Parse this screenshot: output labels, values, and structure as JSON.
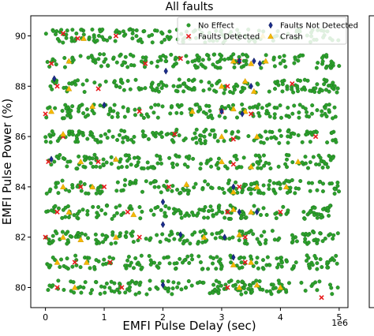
{
  "chart_data": {
    "type": "scatter",
    "title": "All faults",
    "xlabel": "EMFI Pulse Delay (sec)",
    "ylabel": "EMFI Pulse Power (%)",
    "x_offset_label": "1e6",
    "xlim": [
      -0.25,
      5.15
    ],
    "ylim": [
      79.2,
      90.8
    ],
    "x_ticks": [
      0,
      1,
      2,
      3,
      4,
      5
    ],
    "x_tick_labels": [
      "0",
      "1",
      "2",
      "3",
      "4",
      "5"
    ],
    "y_ticks": [
      80,
      82,
      84,
      86,
      88,
      90
    ],
    "y_tick_labels": [
      "80",
      "82",
      "84",
      "86",
      "88",
      "90"
    ],
    "grid": false,
    "legend_position": "top-right",
    "power_levels": [
      80,
      81,
      82,
      83,
      84,
      85,
      86,
      87,
      88,
      89,
      90
    ],
    "delay_range": [
      0,
      5
    ],
    "series": [
      {
        "name": "No Effect",
        "color": "#2ca02c",
        "marker": "circle",
        "points_per_level": 150
      },
      {
        "name": "Faults Detected",
        "color": "#e8191b",
        "marker": "x",
        "points": [
          [
            0.3,
            90.1
          ],
          [
            0.55,
            89.9
          ],
          [
            1.2,
            90.0
          ],
          [
            2.3,
            89.1
          ],
          [
            0.1,
            88.9
          ],
          [
            1.7,
            88.9
          ],
          [
            3.3,
            89.0
          ],
          [
            0.2,
            88.0
          ],
          [
            0.9,
            87.9
          ],
          [
            3.1,
            88.0
          ],
          [
            4.2,
            88.1
          ],
          [
            0.0,
            86.9
          ],
          [
            1.6,
            87.0
          ],
          [
            3.0,
            87.0
          ],
          [
            3.5,
            86.9
          ],
          [
            0.3,
            86.0
          ],
          [
            2.2,
            86.1
          ],
          [
            3.2,
            85.9
          ],
          [
            4.6,
            86.0
          ],
          [
            0.05,
            85.0
          ],
          [
            0.9,
            85.0
          ],
          [
            3.2,
            84.9
          ],
          [
            0.6,
            84.0
          ],
          [
            1.0,
            84.0
          ],
          [
            2.1,
            84.0
          ],
          [
            3.3,
            84.0
          ],
          [
            0.2,
            83.0
          ],
          [
            1.4,
            83.0
          ],
          [
            3.1,
            83.0
          ],
          [
            4.0,
            83.0
          ],
          [
            0.0,
            82.0
          ],
          [
            1.6,
            82.0
          ],
          [
            3.4,
            82.0
          ],
          [
            0.5,
            81.0
          ],
          [
            1.1,
            81.0
          ],
          [
            3.4,
            81.0
          ],
          [
            0.2,
            80.0
          ],
          [
            1.3,
            80.0
          ],
          [
            3.1,
            80.0
          ],
          [
            4.7,
            79.6
          ]
        ]
      },
      {
        "name": "Faults Not Detected",
        "color": "#1a2d8c",
        "marker": "diamond",
        "points": [
          [
            3.3,
            89.0
          ],
          [
            3.55,
            89.0
          ],
          [
            3.65,
            88.9
          ],
          [
            2.05,
            88.6
          ],
          [
            0.15,
            88.3
          ],
          [
            3.5,
            88.0
          ],
          [
            1.0,
            87.25
          ],
          [
            3.0,
            87.0
          ],
          [
            3.35,
            86.9
          ],
          [
            0.1,
            85.1
          ],
          [
            3.2,
            84.0
          ],
          [
            2.0,
            83.4
          ],
          [
            3.3,
            83.0
          ],
          [
            3.6,
            83.0
          ],
          [
            2.0,
            82.5
          ],
          [
            2.3,
            82.1
          ],
          [
            3.05,
            82.0
          ],
          [
            3.2,
            81.2
          ],
          [
            2.0,
            80.1
          ]
        ]
      },
      {
        "name": "Crash",
        "color": "#f5b800",
        "marker": "triangle",
        "points": [
          [
            0.65,
            89.9
          ],
          [
            3.7,
            90.0
          ],
          [
            0.4,
            89.0
          ],
          [
            3.2,
            89.0
          ],
          [
            3.5,
            88.9
          ],
          [
            3.75,
            89.0
          ],
          [
            0.4,
            87.9
          ],
          [
            3.0,
            88.0
          ],
          [
            3.4,
            88.2
          ],
          [
            3.55,
            87.8
          ],
          [
            0.1,
            87.0
          ],
          [
            0.8,
            87.2
          ],
          [
            2.5,
            87.0
          ],
          [
            3.2,
            87.1
          ],
          [
            3.4,
            87.0
          ],
          [
            0.3,
            86.1
          ],
          [
            3.0,
            86.0
          ],
          [
            3.6,
            86.0
          ],
          [
            0.6,
            85.0
          ],
          [
            1.2,
            85.1
          ],
          [
            3.0,
            85.0
          ],
          [
            3.5,
            84.8
          ],
          [
            4.3,
            85.0
          ],
          [
            0.3,
            84.0
          ],
          [
            0.8,
            84.0
          ],
          [
            2.4,
            84.1
          ],
          [
            3.2,
            83.8
          ],
          [
            3.6,
            84.0
          ],
          [
            4.1,
            84.0
          ],
          [
            0.4,
            83.0
          ],
          [
            1.5,
            82.9
          ],
          [
            3.2,
            83.1
          ],
          [
            3.5,
            83.0
          ],
          [
            0.3,
            82.0
          ],
          [
            0.6,
            81.9
          ],
          [
            1.2,
            82.0
          ],
          [
            2.7,
            82.0
          ],
          [
            3.3,
            82.1
          ],
          [
            0.2,
            81.0
          ],
          [
            0.7,
            81.0
          ],
          [
            3.2,
            80.9
          ],
          [
            3.5,
            81.0
          ],
          [
            0.5,
            80.0
          ],
          [
            3.3,
            80.0
          ],
          [
            3.6,
            80.1
          ],
          [
            4.0,
            80.0
          ]
        ]
      }
    ]
  }
}
